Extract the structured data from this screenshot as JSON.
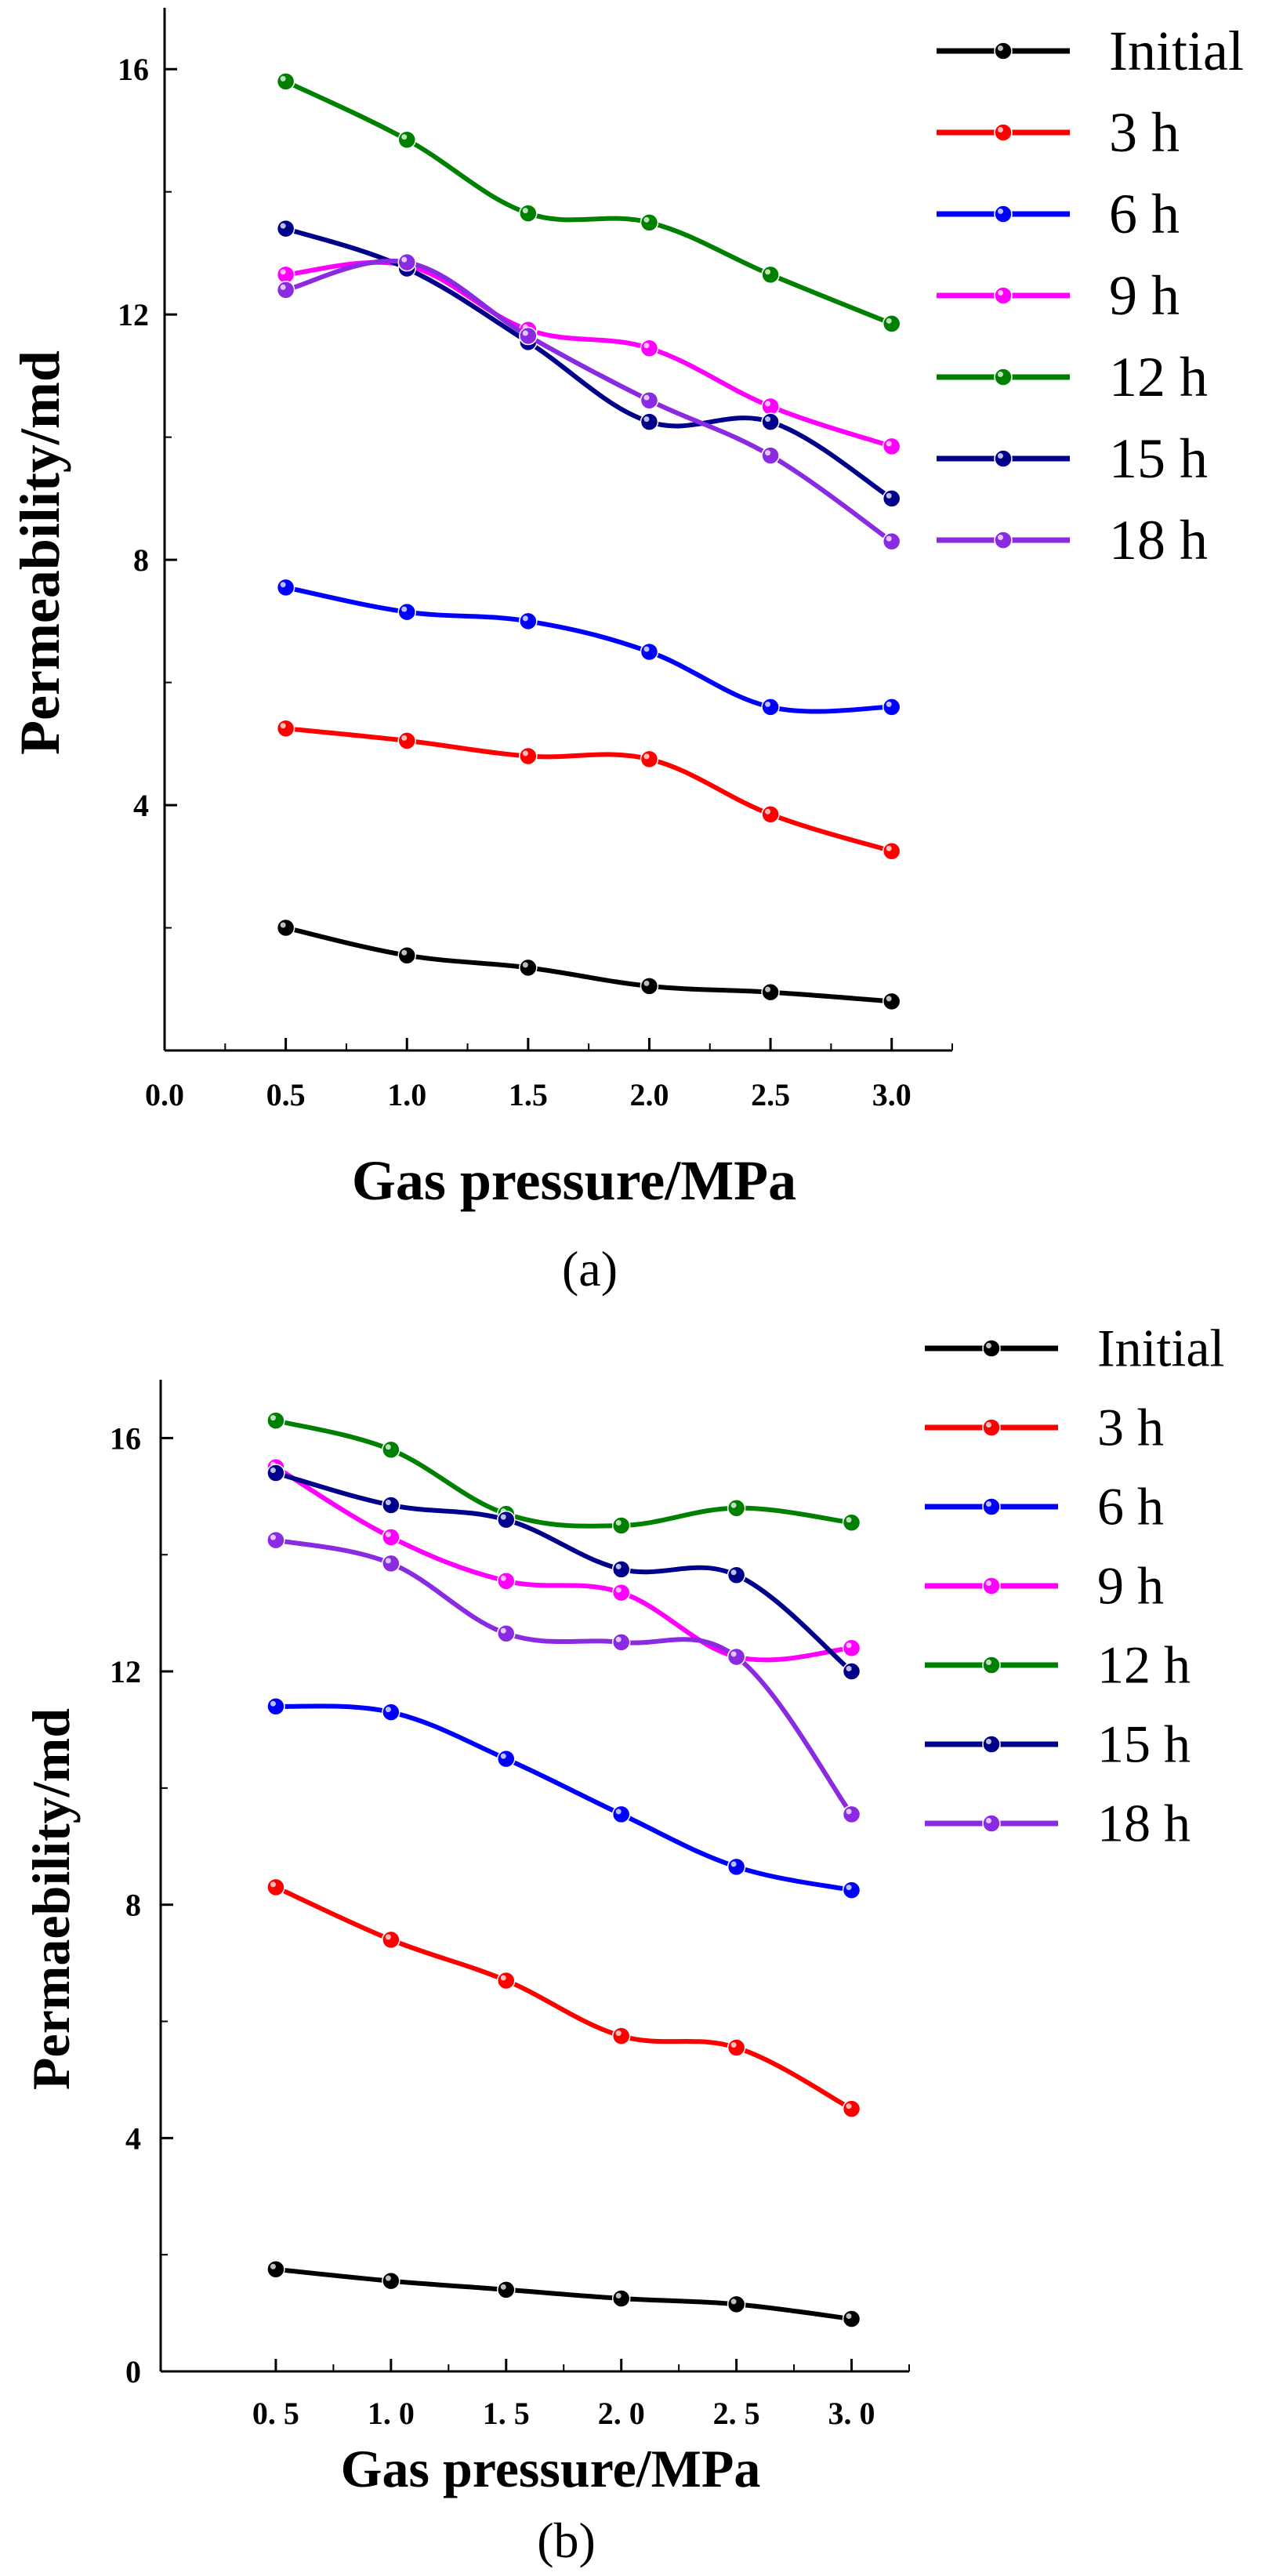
{
  "chart_data": [
    {
      "type": "line",
      "panel_label": "(a)",
      "xlabel": "Gas pressure/MPa",
      "ylabel": "Permeability/md",
      "xlim": [
        0.0,
        3.25
      ],
      "ylim": [
        0,
        17
      ],
      "x_ticks": [
        0.0,
        0.5,
        1.0,
        1.5,
        2.0,
        2.5,
        3.0
      ],
      "x_tick_labels": [
        "0.0",
        "0.5",
        "1.0",
        "1.5",
        "2.0",
        "2.5",
        "3.0"
      ],
      "y_ticks": [
        4,
        8,
        12,
        16
      ],
      "y_tick_labels": [
        "4",
        "8",
        "12",
        "16"
      ],
      "legend_position": "top-right",
      "x": [
        0.5,
        1.0,
        1.5,
        2.0,
        2.5,
        3.0
      ],
      "series": [
        {
          "name": "Initial",
          "color": "#000000",
          "values": [
            2.0,
            1.55,
            1.35,
            1.05,
            0.95,
            0.8
          ]
        },
        {
          "name": "3 h",
          "color": "#ff0000",
          "values": [
            5.25,
            5.05,
            4.8,
            4.75,
            3.85,
            3.25
          ]
        },
        {
          "name": "6 h",
          "color": "#0000ff",
          "values": [
            7.55,
            7.15,
            7.0,
            6.5,
            5.6,
            5.6
          ]
        },
        {
          "name": "9 h",
          "color": "#ff00ff",
          "values": [
            12.65,
            12.8,
            11.75,
            11.45,
            10.5,
            9.85
          ]
        },
        {
          "name": "12 h",
          "color": "#008000",
          "values": [
            15.8,
            14.85,
            13.65,
            13.5,
            12.65,
            11.85
          ]
        },
        {
          "name": "15 h",
          "color": "#00008b",
          "values": [
            13.4,
            12.75,
            11.55,
            10.25,
            10.25,
            9.0
          ]
        },
        {
          "name": "18 h",
          "color": "#8a2be2",
          "values": [
            12.4,
            12.85,
            11.65,
            10.6,
            9.7,
            8.3
          ]
        }
      ]
    },
    {
      "type": "line",
      "panel_label": "(b)",
      "xlabel": "Gas pressure/MPa",
      "ylabel": "Permaebility/md",
      "xlim": [
        0.0,
        3.25
      ],
      "ylim": [
        0,
        17
      ],
      "x_ticks": [
        0.5,
        1.0,
        1.5,
        2.0,
        2.5,
        3.0
      ],
      "x_tick_labels": [
        "0. 5",
        "1. 0",
        "1. 5",
        "2. 0",
        "2. 5",
        "3. 0"
      ],
      "y_ticks": [
        0,
        4,
        8,
        12,
        16
      ],
      "y_tick_labels": [
        "0",
        "4",
        "8",
        "12",
        "16"
      ],
      "legend_position": "top-right",
      "x": [
        0.5,
        1.0,
        1.5,
        2.0,
        2.5,
        3.0
      ],
      "series": [
        {
          "name": "Initial",
          "color": "#000000",
          "values": [
            1.75,
            1.55,
            1.4,
            1.25,
            1.15,
            0.9
          ]
        },
        {
          "name": "3 h",
          "color": "#ff0000",
          "values": [
            8.3,
            7.4,
            6.7,
            5.75,
            5.55,
            4.5
          ]
        },
        {
          "name": "6 h",
          "color": "#0000ff",
          "values": [
            11.4,
            11.3,
            10.5,
            9.55,
            8.65,
            8.25
          ]
        },
        {
          "name": "9 h",
          "color": "#ff00ff",
          "values": [
            15.5,
            14.3,
            13.55,
            13.35,
            12.25,
            12.4
          ]
        },
        {
          "name": "12 h",
          "color": "#008000",
          "values": [
            16.3,
            15.8,
            14.7,
            14.5,
            14.8,
            14.55
          ]
        },
        {
          "name": "15 h",
          "color": "#00008b",
          "values": [
            15.4,
            14.85,
            14.6,
            13.75,
            13.65,
            12.0
          ]
        },
        {
          "name": "18 h",
          "color": "#8a2be2",
          "values": [
            14.25,
            13.85,
            12.65,
            12.5,
            12.25,
            9.55
          ]
        }
      ]
    }
  ]
}
